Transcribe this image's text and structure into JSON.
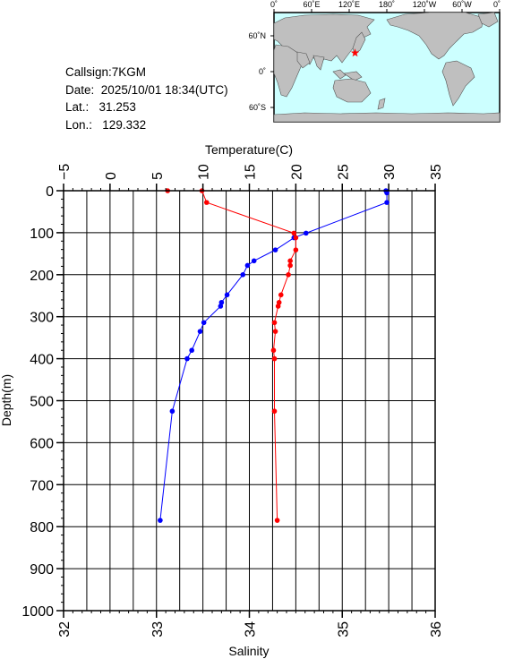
{
  "info": {
    "callsign_label": "Callsign:",
    "callsign": "7KGM",
    "date_label": "Date:",
    "date": "2025/10/01 18:34(UTC)",
    "lat_label": "Lat.:",
    "lat": "31.253",
    "lon_label": "Lon.:",
    "lon": "129.332"
  },
  "map": {
    "top_ticks": [
      "0˚",
      "60˚E",
      "120˚E",
      "180˚",
      "120˚W",
      "60˚W",
      "0˚"
    ],
    "lat_ticks": [
      "60˚N",
      "0˚",
      "60˚S"
    ],
    "ocean_color": "#ccffff",
    "land_color": "#bfbfbf",
    "marker_color": "#ff0000",
    "station": {
      "lon": 129.332,
      "lat": 31.253
    }
  },
  "chart_data": {
    "type": "line",
    "y_axis": {
      "label": "Depth(m)",
      "range": [
        0,
        1000
      ],
      "ticks": [
        0,
        100,
        200,
        300,
        400,
        500,
        600,
        700,
        800,
        900,
        1000
      ],
      "inverted": true
    },
    "x_top": {
      "label": "Temperature(C)",
      "range": [
        -5,
        35
      ],
      "ticks": [
        -5,
        0,
        5,
        10,
        15,
        20,
        25,
        30,
        35
      ]
    },
    "x_bottom": {
      "label": "Salinity",
      "range": [
        32,
        36
      ],
      "ticks": [
        32,
        33,
        34,
        35,
        36
      ]
    },
    "grid": true,
    "series": [
      {
        "axis": "top",
        "color": "#0000ff",
        "points": [
          {
            "x": 29.7,
            "y": 0
          },
          {
            "x": 29.8,
            "y": 5
          },
          {
            "x": 29.8,
            "y": 28
          },
          {
            "x": 21.1,
            "y": 101
          },
          {
            "x": 19.8,
            "y": 112
          },
          {
            "x": 17.8,
            "y": 141
          },
          {
            "x": 15.5,
            "y": 167
          },
          {
            "x": 14.8,
            "y": 178
          },
          {
            "x": 14.3,
            "y": 200
          },
          {
            "x": 12.6,
            "y": 248
          },
          {
            "x": 12.0,
            "y": 266
          },
          {
            "x": 11.9,
            "y": 275
          },
          {
            "x": 10.1,
            "y": 314
          },
          {
            "x": 9.7,
            "y": 335
          },
          {
            "x": 8.8,
            "y": 380
          },
          {
            "x": 8.3,
            "y": 400
          },
          {
            "x": 6.7,
            "y": 525
          },
          {
            "x": 5.4,
            "y": 785
          }
        ]
      },
      {
        "axis": "bottom",
        "color": "#ff0000",
        "points": [
          {
            "x": 33.12,
            "y": 0
          },
          {
            "x": 33.49,
            "y": 0
          },
          {
            "x": 33.54,
            "y": 28
          },
          {
            "x": 34.48,
            "y": 101
          },
          {
            "x": 34.5,
            "y": 112
          },
          {
            "x": 34.5,
            "y": 141
          },
          {
            "x": 34.44,
            "y": 167
          },
          {
            "x": 34.44,
            "y": 178
          },
          {
            "x": 34.42,
            "y": 200
          },
          {
            "x": 34.34,
            "y": 248
          },
          {
            "x": 34.32,
            "y": 266
          },
          {
            "x": 34.31,
            "y": 275
          },
          {
            "x": 34.27,
            "y": 314
          },
          {
            "x": 34.28,
            "y": 335
          },
          {
            "x": 34.26,
            "y": 380
          },
          {
            "x": 34.27,
            "y": 400
          },
          {
            "x": 34.27,
            "y": 525
          },
          {
            "x": 34.3,
            "y": 785
          }
        ]
      }
    ]
  }
}
